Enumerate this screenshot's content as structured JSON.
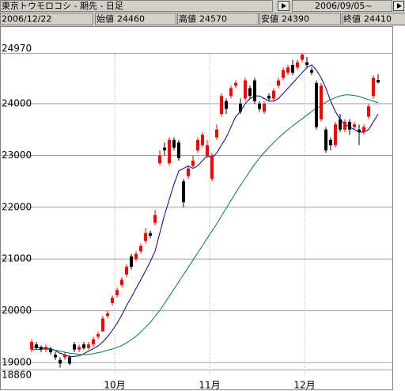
{
  "header": {
    "title": "東京トウモロコシ - 期先 - 日足",
    "period": "2006/09/05~",
    "date": "2006/12/22",
    "fields": [
      {
        "label": "始値",
        "value": 24460
      },
      {
        "label": "高値",
        "value": 24570
      },
      {
        "label": "安値",
        "value": 24390
      },
      {
        "label": "終値",
        "value": 24410
      }
    ]
  },
  "chart_data": {
    "type": "candlestick",
    "categories": [
      null,
      null,
      null,
      null,
      null,
      null,
      null,
      null,
      null,
      null,
      null,
      null,
      null,
      null,
      null,
      null,
      null,
      null,
      null,
      null,
      null,
      null,
      null,
      null,
      null,
      null,
      null,
      null,
      null,
      null,
      null,
      null,
      null,
      null,
      null,
      null,
      null,
      null,
      null,
      null,
      null,
      null,
      null,
      null,
      null,
      null,
      null,
      null,
      null,
      null,
      null,
      null,
      null,
      null,
      null,
      null,
      null,
      null,
      null,
      null,
      null,
      null,
      null,
      null,
      null,
      null,
      null,
      null,
      null,
      null,
      null,
      null,
      null,
      null
    ],
    "open": [
      19250,
      19350,
      19300,
      19250,
      19250,
      19150,
      19050,
      19100,
      19100,
      19350,
      19250,
      19350,
      19280,
      19350,
      19500,
      19600,
      19900,
      20150,
      20300,
      20500,
      20700,
      21050,
      21000,
      21150,
      21350,
      21500,
      21700,
      22850,
      23150,
      22850,
      23300,
      23250,
      22500,
      22600,
      22800,
      23100,
      23200,
      23000,
      22550,
      23350,
      23800,
      24050,
      24150,
      24350,
      24000,
      24100,
      24300,
      24450,
      24000,
      23850,
      24150,
      24100,
      24350,
      24500,
      24600,
      24750,
      24700,
      24850,
      24800,
      24650,
      24400,
      23700,
      23500,
      23300,
      23200,
      23700,
      23500,
      23650,
      23550,
      23500,
      23450,
      23750,
      24150,
      24460
    ],
    "high": [
      19450,
      19400,
      19330,
      19350,
      19300,
      19200,
      19100,
      19200,
      19150,
      19400,
      19350,
      19400,
      19400,
      19500,
      19600,
      19900,
      20000,
      20300,
      20450,
      20650,
      20900,
      21100,
      21150,
      21300,
      21600,
      21550,
      21950,
      23100,
      23250,
      23350,
      23350,
      23300,
      22550,
      22800,
      23000,
      23350,
      23450,
      23300,
      23050,
      23600,
      24200,
      24100,
      24350,
      24450,
      24100,
      24500,
      24350,
      24500,
      24050,
      24050,
      24200,
      24300,
      24500,
      24700,
      24750,
      24850,
      24850,
      24970,
      24900,
      24700,
      24450,
      24400,
      23550,
      23350,
      23650,
      23800,
      23700,
      23700,
      23650,
      23600,
      23600,
      24000,
      24550,
      24570
    ],
    "low": [
      19200,
      19250,
      19200,
      19200,
      19150,
      19050,
      18900,
      19050,
      18950,
      19200,
      19200,
      19250,
      19250,
      19300,
      19450,
      19600,
      19850,
      20100,
      20250,
      20450,
      20650,
      20800,
      20950,
      21100,
      21300,
      21400,
      21650,
      22800,
      23000,
      22800,
      23100,
      22900,
      22000,
      22550,
      22750,
      23050,
      23150,
      22950,
      22500,
      23300,
      23750,
      23800,
      24100,
      24300,
      23800,
      24050,
      24100,
      24000,
      23850,
      23800,
      24050,
      24050,
      24300,
      24450,
      24550,
      24550,
      24650,
      24800,
      24700,
      24550,
      23500,
      23650,
      23050,
      23100,
      23150,
      23450,
      23450,
      23400,
      23500,
      23200,
      23400,
      23700,
      24100,
      24390
    ],
    "close": [
      19400,
      19280,
      19250,
      19300,
      19200,
      19100,
      18980,
      19150,
      18980,
      19250,
      19300,
      19280,
      19350,
      19450,
      19550,
      19850,
      19950,
      20250,
      20400,
      20600,
      20850,
      20850,
      21100,
      21250,
      21500,
      21450,
      21850,
      23000,
      23100,
      23300,
      23150,
      22950,
      22100,
      22750,
      22900,
      23300,
      23400,
      23200,
      23000,
      23500,
      24150,
      23900,
      24300,
      24400,
      23850,
      24450,
      24150,
      24050,
      23900,
      24000,
      24100,
      24250,
      24450,
      24650,
      24700,
      24600,
      24800,
      24950,
      24750,
      24600,
      23550,
      24350,
      23100,
      23200,
      23600,
      23500,
      23650,
      23500,
      23600,
      23450,
      23550,
      23950,
      24500,
      24410
    ],
    "up_color": "#ff0000",
    "down_color": "#000000",
    "series": [
      {
        "color": "#000099",
        "values": [
          19300,
          19300,
          19280,
          19280,
          19270,
          19230,
          19180,
          19150,
          19110,
          19120,
          19130,
          19170,
          19220,
          19270,
          19320,
          19400,
          19500,
          19620,
          19760,
          19920,
          20100,
          20260,
          20430,
          20600,
          20770,
          20950,
          21150,
          21500,
          21850,
          22150,
          22450,
          22700,
          22750,
          22800,
          22750,
          22800,
          22900,
          23000,
          22950,
          23050,
          23200,
          23350,
          23550,
          23750,
          23850,
          24000,
          24100,
          24150,
          24150,
          24100,
          24050,
          24050,
          24100,
          24200,
          24300,
          24400,
          24500,
          24600,
          24700,
          24750,
          24650,
          24500,
          24300,
          24050,
          23850,
          23700,
          23600,
          23550,
          23500,
          23450,
          23450,
          23500,
          23650,
          23800
        ]
      },
      {
        "color": "#008040",
        "values": [
          19250,
          19250,
          19260,
          19260,
          19250,
          19240,
          19220,
          19200,
          19180,
          19170,
          19160,
          19150,
          19160,
          19170,
          19190,
          19210,
          19240,
          19260,
          19290,
          19330,
          19380,
          19440,
          19510,
          19590,
          19680,
          19780,
          19890,
          20010,
          20140,
          20280,
          20420,
          20560,
          20700,
          20840,
          20980,
          21120,
          21260,
          21400,
          21540,
          21680,
          21830,
          21980,
          22130,
          22280,
          22420,
          22560,
          22700,
          22830,
          22950,
          23060,
          23160,
          23250,
          23340,
          23420,
          23500,
          23570,
          23640,
          23710,
          23780,
          23850,
          23910,
          23970,
          24030,
          24080,
          24120,
          24150,
          24170,
          24170,
          24160,
          24140,
          24110,
          24080,
          24050,
          24020
        ]
      }
    ],
    "ylim": [
      18860,
      24970
    ],
    "yticks": [
      18860,
      19000,
      20000,
      21000,
      22000,
      23000,
      24000,
      24970
    ],
    "xticks": [
      {
        "value": 17.5,
        "label": "10月"
      },
      {
        "value": 37.5,
        "label": "11月"
      },
      {
        "value": 57.5,
        "label": "12月"
      }
    ],
    "grid": true
  }
}
